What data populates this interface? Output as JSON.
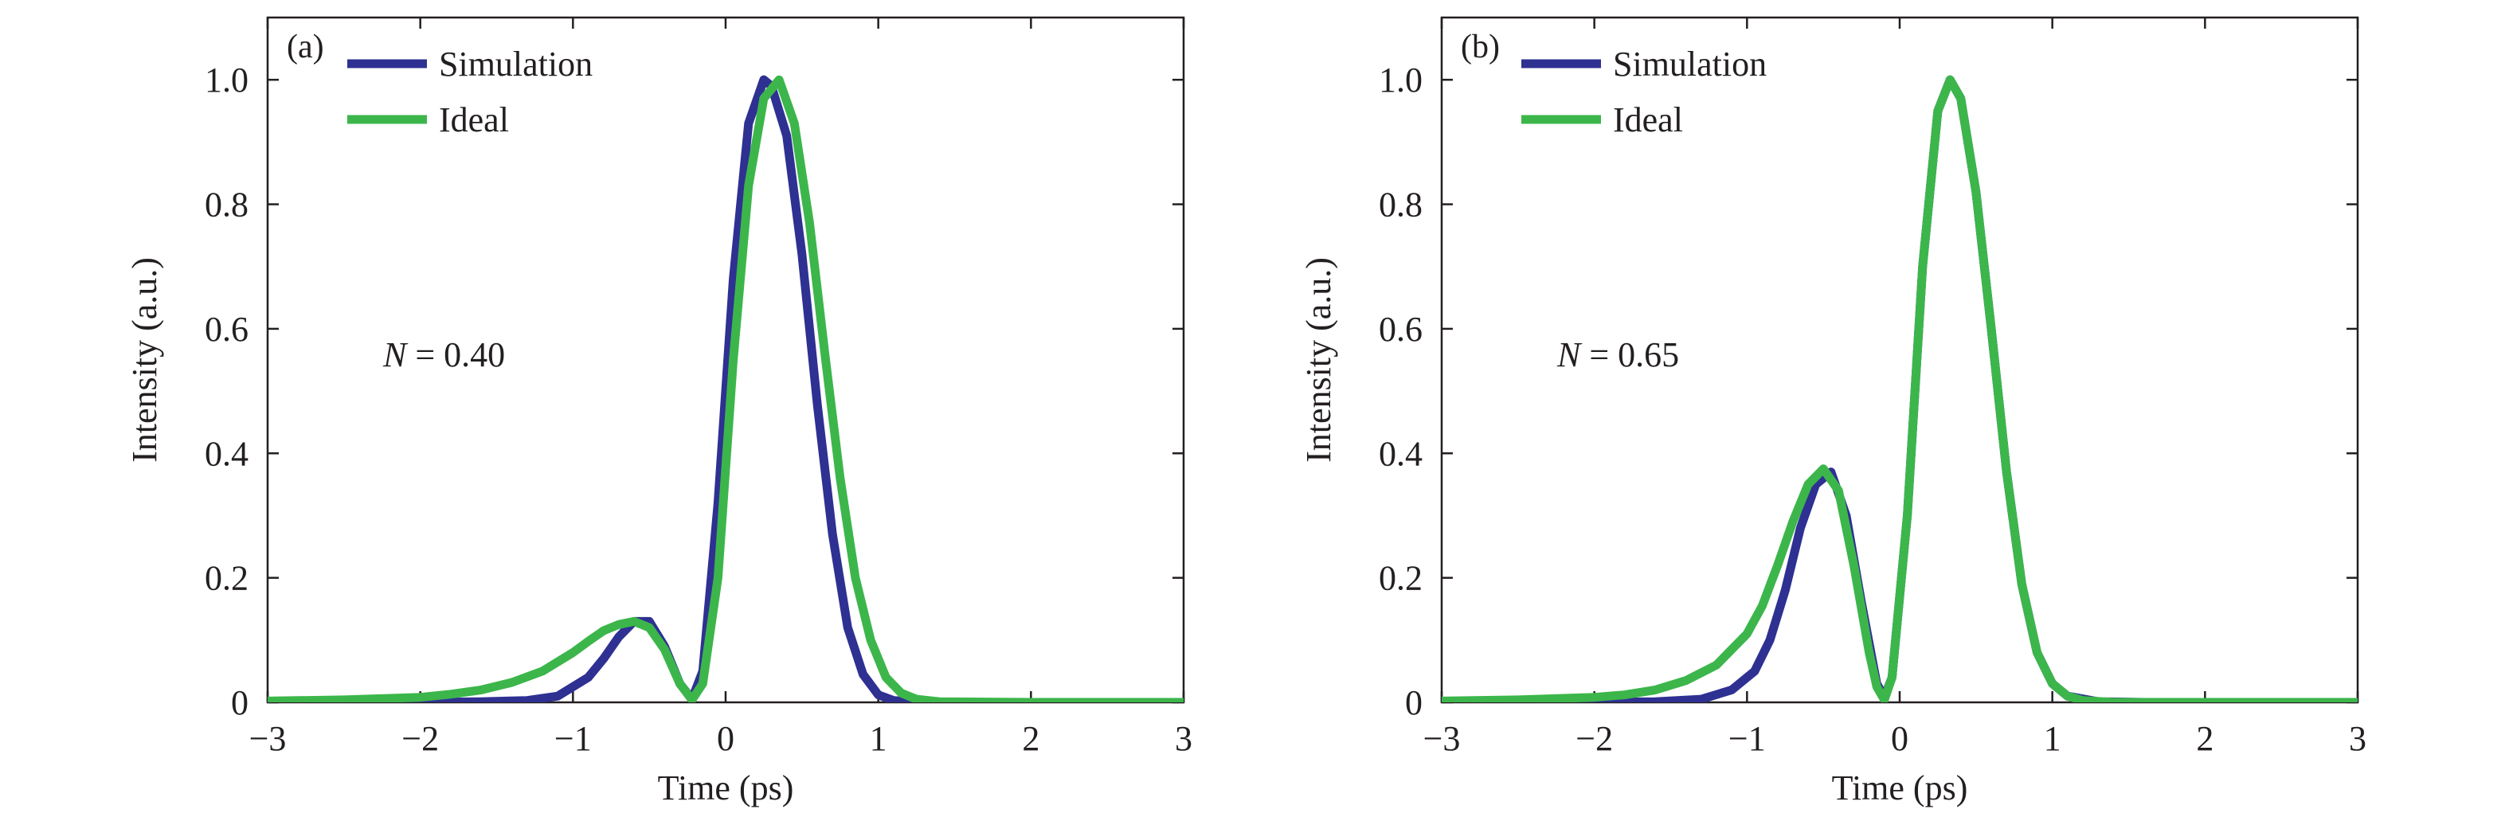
{
  "colors": {
    "simulation": "#2e3092",
    "ideal": "#3cb64b",
    "axis": "#231f20"
  },
  "chart_data": [
    {
      "type": "line",
      "panel_label": "(a)",
      "annotation": {
        "var": "N",
        "text": " = 0.40"
      },
      "xlabel": "Time (ps)",
      "ylabel": "Intensity (a.u.)",
      "xlim": [
        -3,
        3
      ],
      "ylim": [
        0,
        1.1
      ],
      "xticks": [
        -3,
        -2,
        -1,
        0,
        1,
        2,
        3
      ],
      "xtick_labels": [
        "−3",
        "−2",
        "−1",
        "0",
        "1",
        "2",
        "3"
      ],
      "yticks": [
        0,
        0.2,
        0.4,
        0.6,
        0.8,
        1.0
      ],
      "ytick_labels": [
        "0",
        "0.2",
        "0.4",
        "0.6",
        "0.8",
        "1.0"
      ],
      "grid": false,
      "legend_position": "top-left",
      "series": [
        {
          "name": "Simulation",
          "color_key": "simulation",
          "x": [
            -3,
            -2.5,
            -2,
            -1.6,
            -1.3,
            -1.1,
            -0.9,
            -0.8,
            -0.7,
            -0.6,
            -0.5,
            -0.4,
            -0.3,
            -0.22,
            -0.15,
            -0.05,
            0.05,
            0.15,
            0.25,
            0.3,
            0.4,
            0.5,
            0.6,
            0.7,
            0.8,
            0.9,
            1.0,
            1.1,
            1.3,
            1.6,
            2,
            2.5,
            3
          ],
          "y": [
            0,
            0,
            0,
            0.001,
            0.003,
            0.01,
            0.04,
            0.07,
            0.105,
            0.13,
            0.13,
            0.09,
            0.03,
            0.005,
            0.05,
            0.32,
            0.68,
            0.93,
            1.0,
            0.99,
            0.91,
            0.72,
            0.48,
            0.27,
            0.12,
            0.045,
            0.012,
            0.003,
            0,
            0,
            0,
            0,
            0
          ]
        },
        {
          "name": "Ideal",
          "color_key": "ideal",
          "x": [
            -3,
            -2.5,
            -2,
            -1.8,
            -1.6,
            -1.4,
            -1.2,
            -1.0,
            -0.9,
            -0.8,
            -0.7,
            -0.6,
            -0.5,
            -0.4,
            -0.3,
            -0.22,
            -0.15,
            -0.05,
            0.05,
            0.15,
            0.25,
            0.35,
            0.45,
            0.55,
            0.65,
            0.75,
            0.85,
            0.95,
            1.05,
            1.15,
            1.25,
            1.4,
            2,
            2.5,
            3
          ],
          "y": [
            0.002,
            0.004,
            0.008,
            0.013,
            0.02,
            0.032,
            0.05,
            0.08,
            0.098,
            0.115,
            0.125,
            0.13,
            0.12,
            0.085,
            0.03,
            0.004,
            0.03,
            0.2,
            0.55,
            0.83,
            0.97,
            1.0,
            0.93,
            0.77,
            0.56,
            0.36,
            0.2,
            0.1,
            0.04,
            0.015,
            0.005,
            0.001,
            0,
            0,
            0
          ]
        }
      ]
    },
    {
      "type": "line",
      "panel_label": "(b)",
      "annotation": {
        "var": "N",
        "text": " = 0.65"
      },
      "xlabel": "Time (ps)",
      "ylabel": "Intensity (a.u.)",
      "xlim": [
        -3,
        3
      ],
      "ylim": [
        0,
        1.1
      ],
      "xticks": [
        -3,
        -2,
        -1,
        0,
        1,
        2,
        3
      ],
      "xtick_labels": [
        "−3",
        "−2",
        "−1",
        "0",
        "1",
        "2",
        "3"
      ],
      "yticks": [
        0,
        0.2,
        0.4,
        0.6,
        0.8,
        1.0
      ],
      "ytick_labels": [
        "0",
        "0.2",
        "0.4",
        "0.6",
        "0.8",
        "1.0"
      ],
      "grid": false,
      "legend_position": "top-left",
      "series": [
        {
          "name": "Simulation",
          "color_key": "simulation",
          "x": [
            -3,
            -2.5,
            -2,
            -1.6,
            -1.3,
            -1.1,
            -0.95,
            -0.85,
            -0.75,
            -0.65,
            -0.55,
            -0.45,
            -0.35,
            -0.25,
            -0.15,
            -0.1,
            -0.05,
            0.05,
            0.15,
            0.25,
            0.33,
            0.4,
            0.5,
            0.6,
            0.7,
            0.8,
            0.9,
            1.0,
            1.1,
            1.3,
            1.6,
            2,
            2.5,
            3
          ],
          "y": [
            0,
            0,
            0,
            0.001,
            0.005,
            0.02,
            0.05,
            0.1,
            0.18,
            0.28,
            0.35,
            0.37,
            0.3,
            0.16,
            0.03,
            0.008,
            0.04,
            0.3,
            0.7,
            0.95,
            1.0,
            0.97,
            0.82,
            0.6,
            0.37,
            0.19,
            0.08,
            0.03,
            0.01,
            0.001,
            0,
            0,
            0,
            0
          ]
        },
        {
          "name": "Ideal",
          "color_key": "ideal",
          "x": [
            -3,
            -2.5,
            -2,
            -1.8,
            -1.6,
            -1.4,
            -1.2,
            -1.0,
            -0.9,
            -0.8,
            -0.7,
            -0.6,
            -0.5,
            -0.4,
            -0.3,
            -0.2,
            -0.15,
            -0.1,
            -0.05,
            0.05,
            0.15,
            0.25,
            0.33,
            0.4,
            0.5,
            0.6,
            0.7,
            0.8,
            0.9,
            1.0,
            1.1,
            1.2,
            1.4,
            2,
            2.5,
            3
          ],
          "y": [
            0.002,
            0.004,
            0.008,
            0.012,
            0.02,
            0.035,
            0.06,
            0.11,
            0.155,
            0.22,
            0.29,
            0.35,
            0.375,
            0.34,
            0.22,
            0.08,
            0.025,
            0.004,
            0.04,
            0.3,
            0.7,
            0.95,
            1.0,
            0.97,
            0.82,
            0.6,
            0.37,
            0.19,
            0.08,
            0.03,
            0.01,
            0.003,
            0,
            0,
            0,
            0
          ]
        }
      ]
    }
  ]
}
